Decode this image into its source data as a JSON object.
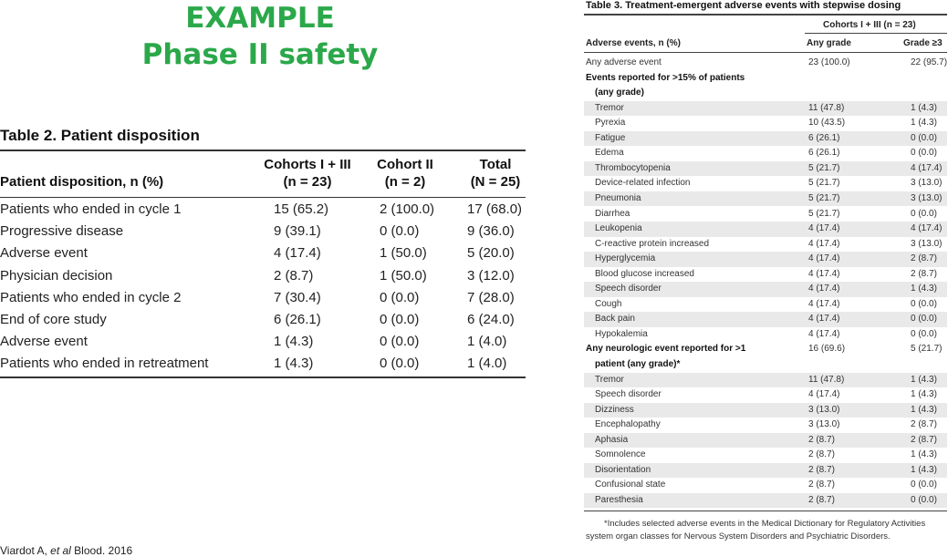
{
  "title": {
    "line1": "EXAMPLE",
    "line2": "Phase II safety"
  },
  "table2": {
    "caption": "Table 2. Patient disposition",
    "headers": [
      [
        "Patient disposition, n (%)"
      ],
      [
        "Cohorts I + III",
        "(n = 23)"
      ],
      [
        "Cohort II",
        "(n = 2)"
      ],
      [
        "Total",
        "(N = 25)"
      ]
    ],
    "rows": [
      [
        "Patients who ended in cycle 1",
        "15 (65.2)",
        "2 (100.0)",
        "17 (68.0)"
      ],
      [
        "Progressive disease",
        "9 (39.1)",
        "0 (0.0)",
        "9 (36.0)"
      ],
      [
        "Adverse event",
        "4 (17.4)",
        "1 (50.0)",
        "5 (20.0)"
      ],
      [
        "Physician decision",
        "2 (8.7)",
        "1 (50.0)",
        "3 (12.0)"
      ],
      [
        "Patients who ended in cycle 2",
        "7 (30.4)",
        "0 (0.0)",
        "7 (28.0)"
      ],
      [
        "End of core study",
        "6 (26.1)",
        "0 (0.0)",
        "6 (24.0)"
      ],
      [
        "Adverse event",
        "1 (4.3)",
        "0 (0.0)",
        "1 (4.0)"
      ],
      [
        "Patients who ended in retreatment",
        "1 (4.3)",
        "0 (0.0)",
        "1 (4.0)"
      ]
    ]
  },
  "table3": {
    "caption": "Table 3. Treatment-emergent adverse events with stepwise dosing",
    "group_header": "Cohorts I + III (n = 23)",
    "headers": [
      "Adverse events, n (%)",
      "Any grade",
      "Grade ≥3"
    ],
    "rows": [
      {
        "name": "Any adverse event",
        "any": "23 (100.0)",
        "g3": "22 (95.7)",
        "style": "plain"
      },
      {
        "name": "Events reported for >15% of patients",
        "any": "",
        "g3": "",
        "style": "bold"
      },
      {
        "name": "(any grade)",
        "any": "",
        "g3": "",
        "style": "bold-ind"
      },
      {
        "name": "Tremor",
        "any": "11 (47.8)",
        "g3": "1 (4.3)",
        "style": "ind"
      },
      {
        "name": "Pyrexia",
        "any": "10 (43.5)",
        "g3": "1 (4.3)",
        "style": "ind"
      },
      {
        "name": "Fatigue",
        "any": "6 (26.1)",
        "g3": "0 (0.0)",
        "style": "ind"
      },
      {
        "name": "Edema",
        "any": "6 (26.1)",
        "g3": "0 (0.0)",
        "style": "ind"
      },
      {
        "name": "Thrombocytopenia",
        "any": "5 (21.7)",
        "g3": "4 (17.4)",
        "style": "ind"
      },
      {
        "name": "Device-related infection",
        "any": "5 (21.7)",
        "g3": "3 (13.0)",
        "style": "ind"
      },
      {
        "name": "Pneumonia",
        "any": "5 (21.7)",
        "g3": "3 (13.0)",
        "style": "ind"
      },
      {
        "name": "Diarrhea",
        "any": "5 (21.7)",
        "g3": "0 (0.0)",
        "style": "ind"
      },
      {
        "name": "Leukopenia",
        "any": "4 (17.4)",
        "g3": "4 (17.4)",
        "style": "ind"
      },
      {
        "name": "C-reactive protein increased",
        "any": "4 (17.4)",
        "g3": "3 (13.0)",
        "style": "ind"
      },
      {
        "name": "Hyperglycemia",
        "any": "4 (17.4)",
        "g3": "2 (8.7)",
        "style": "ind"
      },
      {
        "name": "Blood glucose increased",
        "any": "4 (17.4)",
        "g3": "2 (8.7)",
        "style": "ind"
      },
      {
        "name": "Speech disorder",
        "any": "4 (17.4)",
        "g3": "1 (4.3)",
        "style": "ind"
      },
      {
        "name": "Cough",
        "any": "4 (17.4)",
        "g3": "0 (0.0)",
        "style": "ind"
      },
      {
        "name": "Back pain",
        "any": "4 (17.4)",
        "g3": "0 (0.0)",
        "style": "ind"
      },
      {
        "name": "Hypokalemia",
        "any": "4 (17.4)",
        "g3": "0 (0.0)",
        "style": "ind"
      },
      {
        "name": "Any neurologic event reported for >1",
        "any": "16 (69.6)",
        "g3": "5 (21.7)",
        "style": "bold"
      },
      {
        "name": "patient (any grade)*",
        "any": "",
        "g3": "",
        "style": "bold-ind"
      },
      {
        "name": "Tremor",
        "any": "11 (47.8)",
        "g3": "1 (4.3)",
        "style": "ind"
      },
      {
        "name": "Speech disorder",
        "any": "4 (17.4)",
        "g3": "1 (4.3)",
        "style": "ind"
      },
      {
        "name": "Dizziness",
        "any": "3 (13.0)",
        "g3": "1 (4.3)",
        "style": "ind"
      },
      {
        "name": "Encephalopathy",
        "any": "3 (13.0)",
        "g3": "2 (8.7)",
        "style": "ind"
      },
      {
        "name": "Aphasia",
        "any": "2 (8.7)",
        "g3": "2 (8.7)",
        "style": "ind"
      },
      {
        "name": "Somnolence",
        "any": "2 (8.7)",
        "g3": "1 (4.3)",
        "style": "ind"
      },
      {
        "name": "Disorientation",
        "any": "2 (8.7)",
        "g3": "1 (4.3)",
        "style": "ind"
      },
      {
        "name": "Confusional state",
        "any": "2 (8.7)",
        "g3": "0 (0.0)",
        "style": "ind"
      },
      {
        "name": "Paresthesia",
        "any": "2 (8.7)",
        "g3": "0 (0.0)",
        "style": "ind"
      }
    ],
    "footnote_line1": "*Includes selected adverse events in the Medical Dictionary for Regulatory Activities",
    "footnote_line2": "system organ classes for Nervous System Disorders and Psychiatric Disorders."
  },
  "citation": {
    "pre": "Viardot A, ",
    "etal": "et al",
    "post": " Blood. 2016"
  }
}
